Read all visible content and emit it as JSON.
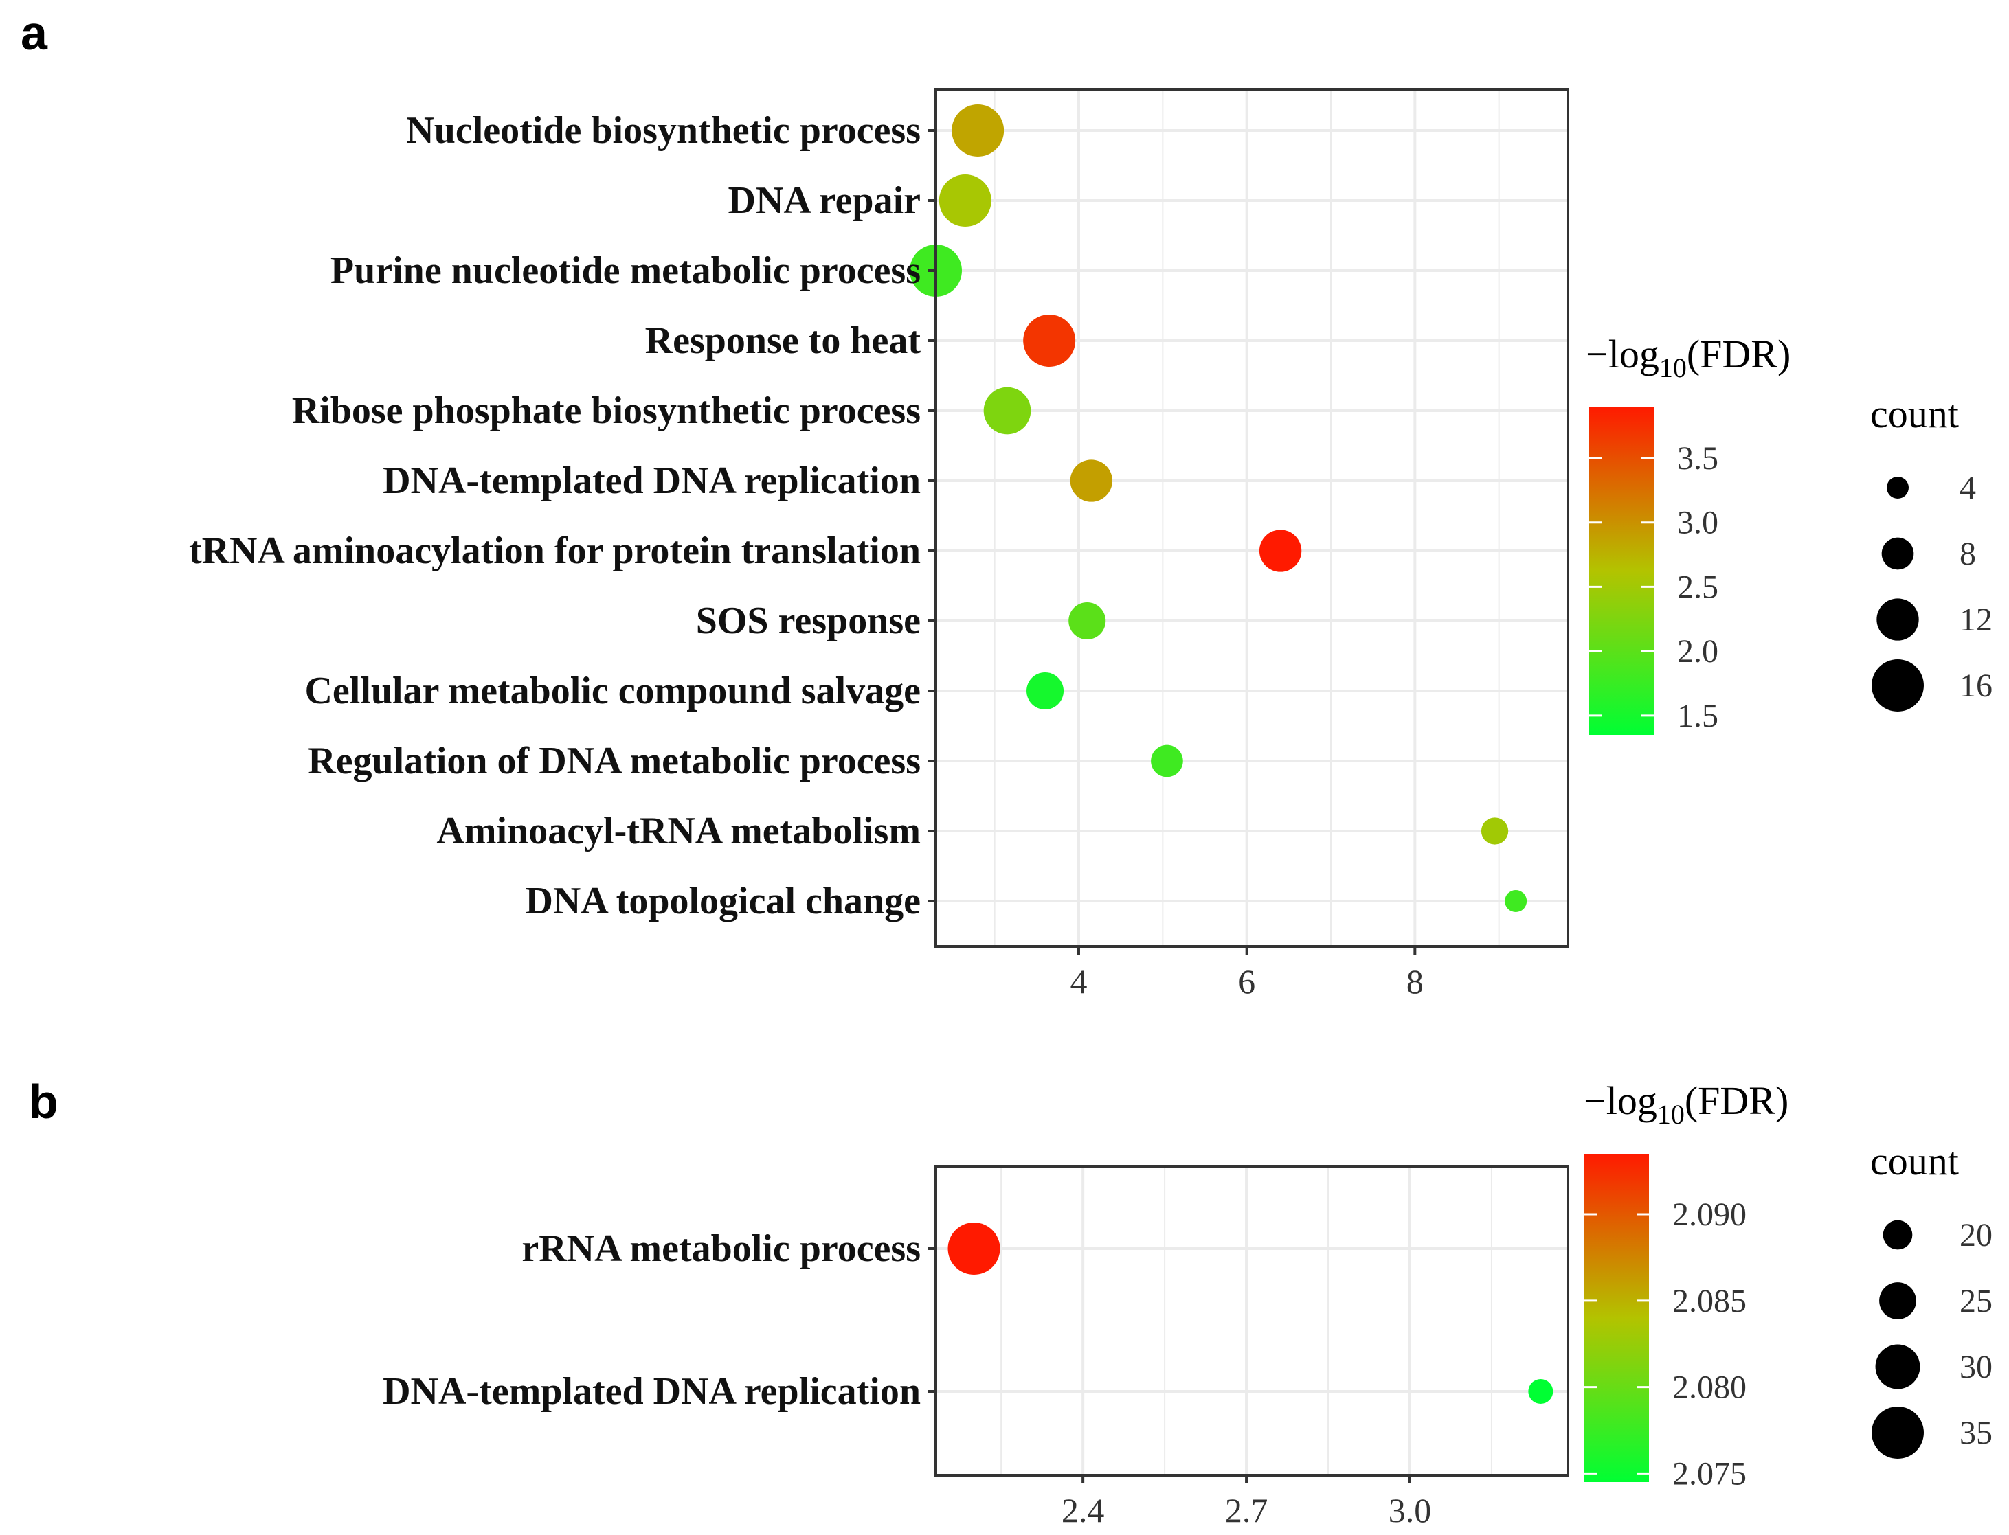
{
  "figure": {
    "panels": [
      "a",
      "b"
    ],
    "colorbar_title_prefix": "−log",
    "colorbar_title_sub": "10",
    "colorbar_title_suffix": "(FDR)",
    "size_legend_title": "count",
    "colors": {
      "low": "#00ff33",
      "mid": "#b3c300",
      "high": "#ff1a00",
      "grid": "#ebebeb",
      "frame": "#333333"
    }
  },
  "chart_data": [
    {
      "panel": "a",
      "type": "scatter",
      "xlabel": "",
      "ylabel": "",
      "xlim": [
        2.3,
        9.82
      ],
      "xticks": [
        4,
        6,
        8
      ],
      "xtick_labels": [
        "4",
        "6",
        "8"
      ],
      "categories": [
        "Nucleotide biosynthetic process",
        "DNA repair",
        "Purine nucleotide metabolic process",
        "Response to heat",
        "Ribose phosphate biosynthetic process",
        "DNA-templated DNA replication",
        "tRNA aminoacylation for protein translation",
        "SOS response",
        "Cellular metabolic compound salvage",
        "Regulation of DNA metabolic process",
        "Aminoacyl-tRNA metabolism",
        "DNA topological change"
      ],
      "x": [
        2.8,
        2.65,
        2.3,
        3.65,
        3.15,
        4.15,
        6.4,
        4.1,
        3.6,
        5.05,
        8.95,
        9.2
      ],
      "count": [
        16,
        16,
        16,
        16,
        14,
        12,
        12,
        10,
        10,
        8,
        6,
        4
      ],
      "color_value": [
        2.85,
        2.55,
        1.8,
        3.7,
        2.25,
        2.9,
        3.9,
        2.0,
        1.5,
        1.8,
        2.5,
        1.8
      ],
      "colorbar": {
        "min": 1.35,
        "max": 3.9,
        "ticks": [
          1.5,
          2.0,
          2.5,
          3.0,
          3.5
        ],
        "tick_labels": [
          "1.5",
          "2.0",
          "2.5",
          "3.0",
          "3.5"
        ]
      },
      "size_legend": {
        "values": [
          4,
          8,
          12,
          16
        ],
        "labels": [
          "4",
          "8",
          "12",
          "16"
        ]
      }
    },
    {
      "panel": "b",
      "type": "scatter",
      "xlabel": "",
      "ylabel": "",
      "xlim": [
        2.13,
        3.29
      ],
      "xticks": [
        2.4,
        2.7,
        3.0
      ],
      "xtick_labels": [
        "2.4",
        "2.7",
        "3.0"
      ],
      "categories": [
        "rRNA metabolic process",
        "DNA-templated DNA replication"
      ],
      "x": [
        2.2,
        3.24
      ],
      "count": [
        35,
        17
      ],
      "color_value": [
        2.0935,
        2.0745
      ],
      "colorbar": {
        "min": 2.0745,
        "max": 2.0935,
        "ticks": [
          2.075,
          2.08,
          2.085,
          2.09
        ],
        "tick_labels": [
          "2.075",
          "2.080",
          "2.085",
          "2.090"
        ]
      },
      "size_legend": {
        "values": [
          20,
          25,
          30,
          35
        ],
        "labels": [
          "20",
          "25",
          "30",
          "35"
        ]
      }
    }
  ]
}
